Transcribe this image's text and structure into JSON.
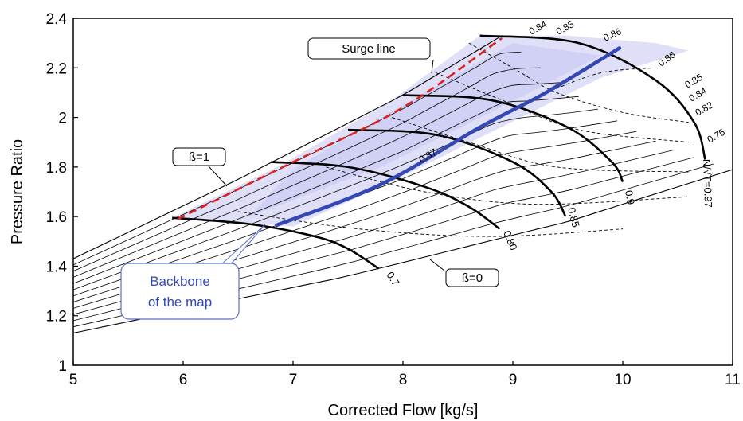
{
  "chart_data": {
    "type": "line",
    "title": "",
    "xlabel": "Corrected Flow [kg/s]",
    "ylabel": "Pressure Ratio",
    "xlim": [
      5,
      11
    ],
    "ylim": [
      1,
      2.4
    ],
    "x_ticks": [
      "5",
      "6",
      "7",
      "8",
      "9",
      "10",
      "11"
    ],
    "y_ticks": [
      "1",
      "1.2",
      "1.4",
      "1.6",
      "1.8",
      "2",
      "2.2",
      "2.4"
    ],
    "grid": false,
    "speed_lines": [
      {
        "label": "0.7",
        "points": [
          [
            5.9,
            1.595
          ],
          [
            6.6,
            1.57
          ],
          [
            7.2,
            1.52
          ],
          [
            7.5,
            1.47
          ],
          [
            7.78,
            1.39
          ]
        ]
      },
      {
        "label": "0.80",
        "points": [
          [
            6.8,
            1.82
          ],
          [
            7.5,
            1.8
          ],
          [
            8.2,
            1.72
          ],
          [
            8.6,
            1.64
          ],
          [
            8.88,
            1.55
          ]
        ]
      },
      {
        "label": "0.85",
        "points": [
          [
            7.5,
            1.95
          ],
          [
            8.3,
            1.93
          ],
          [
            9.0,
            1.82
          ],
          [
            9.35,
            1.7
          ],
          [
            9.48,
            1.6
          ]
        ]
      },
      {
        "label": "0.9",
        "points": [
          [
            8.0,
            2.09
          ],
          [
            8.8,
            2.07
          ],
          [
            9.5,
            1.96
          ],
          [
            9.9,
            1.82
          ],
          [
            10.0,
            1.74
          ]
        ]
      },
      {
        "label": "N/√T=0.97",
        "points": [
          [
            8.7,
            2.33
          ],
          [
            9.6,
            2.3
          ],
          [
            10.3,
            2.15
          ],
          [
            10.65,
            1.98
          ],
          [
            10.75,
            1.83
          ]
        ]
      }
    ],
    "beta_lines": [
      {
        "label": "ß=1",
        "points": [
          [
            5.0,
            1.43
          ],
          [
            6.5,
            1.75
          ],
          [
            8.0,
            2.09
          ],
          [
            8.9,
            2.33
          ]
        ]
      },
      {
        "label": "ß=0",
        "points": [
          [
            5.0,
            1.13
          ],
          [
            7.5,
            1.36
          ],
          [
            9.5,
            1.58
          ],
          [
            11.0,
            1.79
          ]
        ]
      }
    ],
    "surge_line": {
      "label": "Surge line",
      "points": [
        [
          5.95,
          1.59
        ],
        [
          7.0,
          1.82
        ],
        [
          8.0,
          2.04
        ],
        [
          8.9,
          2.32
        ]
      ]
    },
    "backbone": {
      "label": "Backbone of the map",
      "points": [
        [
          6.85,
          1.565
        ],
        [
          7.8,
          1.73
        ],
        [
          8.7,
          1.96
        ],
        [
          9.3,
          2.1
        ],
        [
          9.97,
          2.28
        ]
      ]
    },
    "efficiency_labels": [
      "0.84",
      "0.85",
      "0.86",
      "0.86",
      "0.85",
      "0.84",
      "0.82",
      "0.75",
      "0.87"
    ],
    "colors": {
      "speed_lines": "#000000",
      "beta_lines": "#000000",
      "surge_line": "#e02020",
      "backbone": "#3448b4",
      "shading": "#b8b8f0"
    }
  },
  "callouts": {
    "surge": "Surge line",
    "beta1": "ß=1",
    "beta0": "ß=0",
    "backbone_line1": "Backbone",
    "backbone_line2": "of the map"
  }
}
